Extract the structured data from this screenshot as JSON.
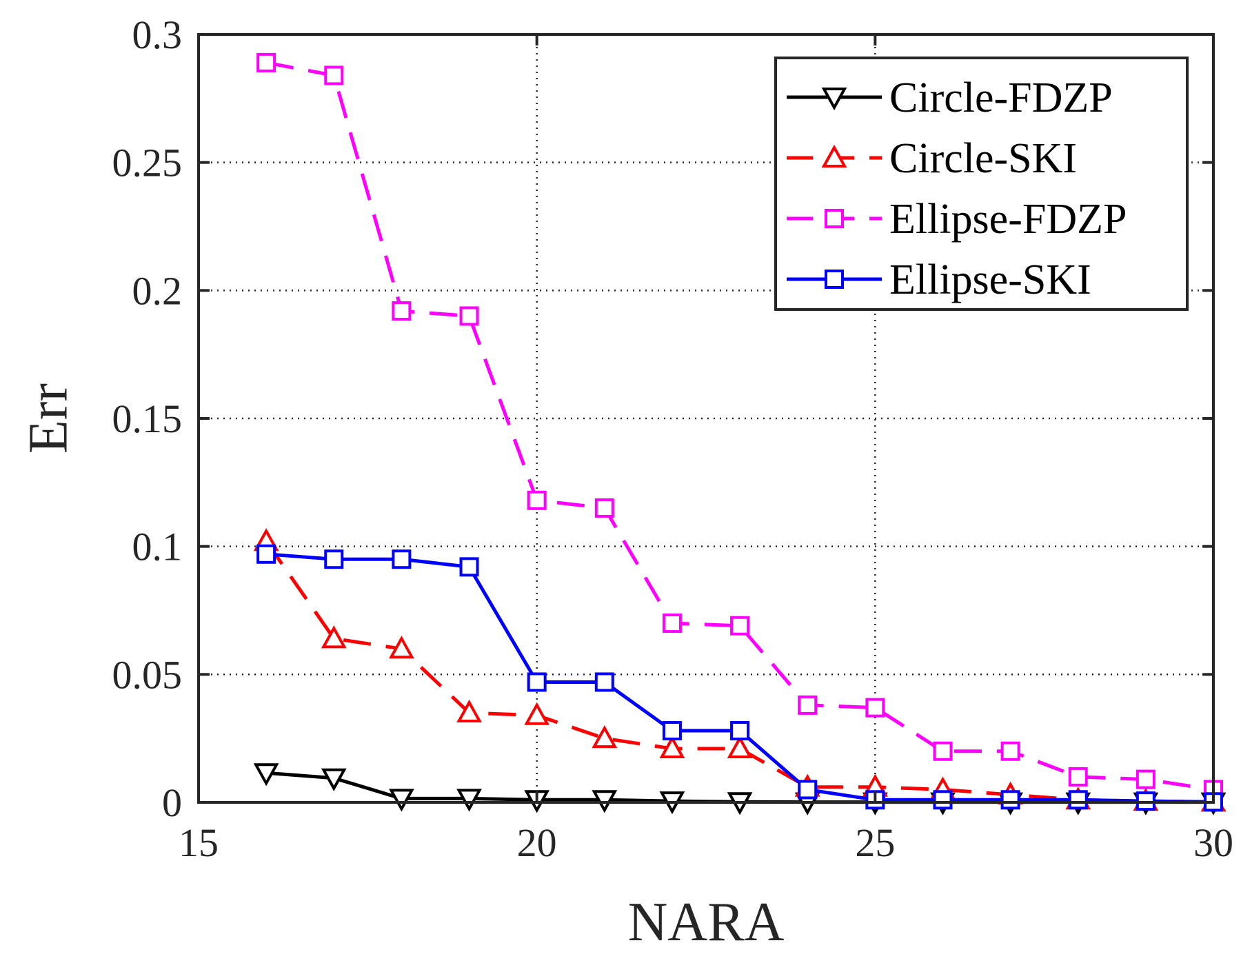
{
  "chart_data": {
    "type": "line",
    "title": "",
    "xlabel": "NARA",
    "ylabel": "Err",
    "xlim": [
      15,
      30
    ],
    "ylim": [
      0,
      0.3
    ],
    "xticks": [
      15,
      20,
      25,
      30
    ],
    "xtick_labels": [
      "15",
      "20",
      "25",
      "30"
    ],
    "yticks": [
      0,
      0.05,
      0.1,
      0.15,
      0.2,
      0.25,
      0.3
    ],
    "ytick_labels": [
      "0",
      "0.05",
      "0.1",
      "0.15",
      "0.2",
      "0.25",
      "0.3"
    ],
    "grid": true,
    "legend_position": "top-right",
    "x": [
      16,
      17,
      18,
      19,
      20,
      21,
      22,
      23,
      24,
      25,
      26,
      27,
      28,
      29,
      30
    ],
    "series": [
      {
        "name": "Circle-FDZP",
        "color": "#000000",
        "style": "solid",
        "marker": "triangle-down",
        "values": [
          0.0115,
          0.0095,
          0.0015,
          0.0015,
          0.001,
          0.001,
          0.0005,
          0.0002,
          0.0001,
          0.0001,
          0.0001,
          0.0001,
          0.0001,
          0.0001,
          0.0001
        ]
      },
      {
        "name": "Circle-SKI",
        "color": "#ff0000",
        "style": "dashed",
        "marker": "triangle-up",
        "values": [
          0.102,
          0.064,
          0.06,
          0.035,
          0.034,
          0.025,
          0.021,
          0.021,
          0.006,
          0.006,
          0.005,
          0.003,
          0.001,
          0.0005,
          0.0002
        ]
      },
      {
        "name": "Ellipse-FDZP",
        "color": "#ff00ff",
        "style": "dashed",
        "marker": "square",
        "values": [
          0.289,
          0.284,
          0.192,
          0.19,
          0.118,
          0.115,
          0.07,
          0.069,
          0.038,
          0.037,
          0.02,
          0.02,
          0.01,
          0.009,
          0.005
        ]
      },
      {
        "name": "Ellipse-SKI",
        "color": "#0000ff",
        "style": "solid",
        "marker": "square",
        "values": [
          0.097,
          0.095,
          0.095,
          0.092,
          0.047,
          0.047,
          0.028,
          0.028,
          0.005,
          0.001,
          0.001,
          0.001,
          0.001,
          0.0005,
          0.0002
        ]
      }
    ]
  }
}
